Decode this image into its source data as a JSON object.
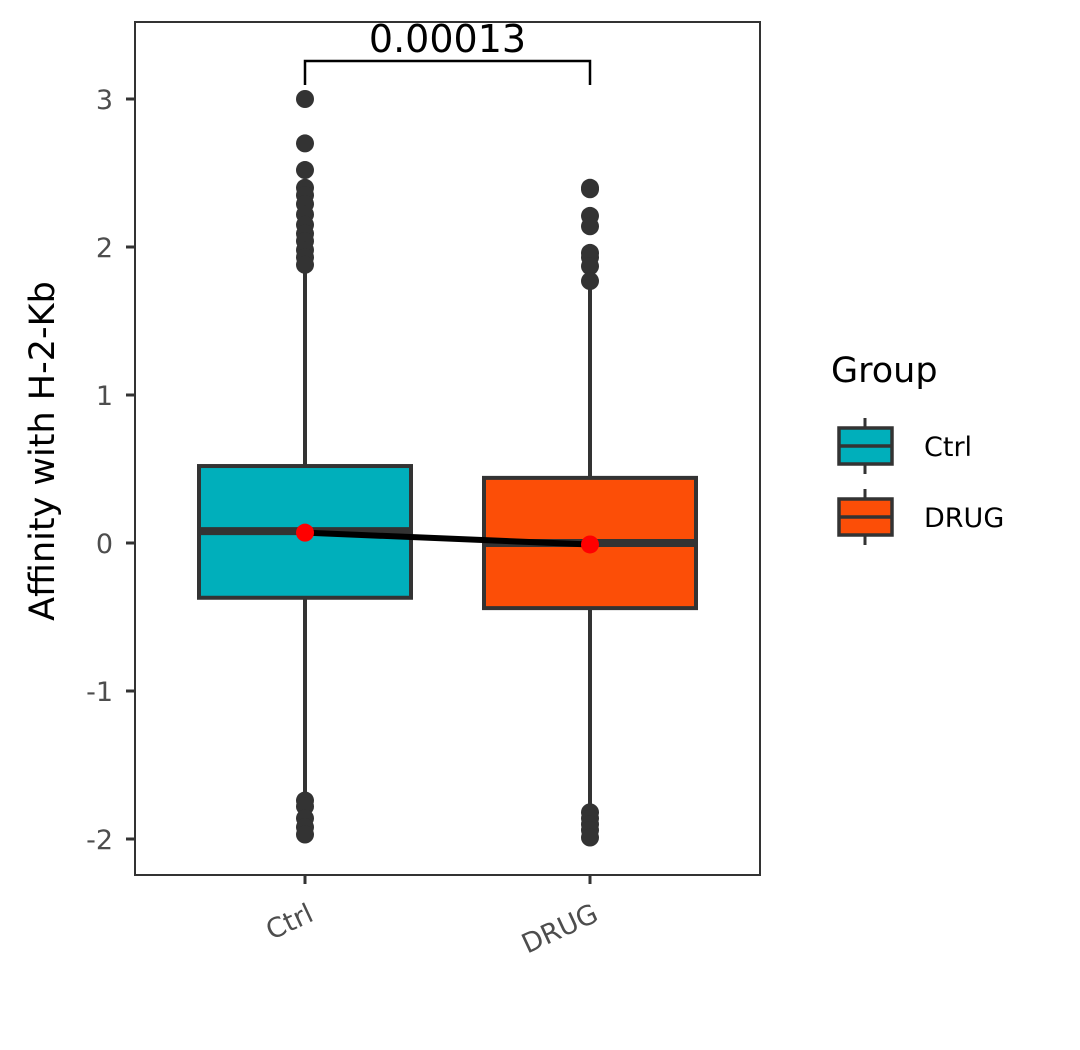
{
  "chart_data": {
    "type": "box",
    "ylabel": "Affinity with H-2-Kb",
    "xlabel": "",
    "ylim": [
      -2.25,
      3.5
    ],
    "yticks": [
      -2,
      -1,
      0,
      1,
      2,
      3
    ],
    "ytick_labels": [
      "-2",
      "-1",
      "0",
      "1",
      "2",
      "3"
    ],
    "categories": [
      "Ctrl",
      "DRUG"
    ],
    "grid": false,
    "groups": [
      {
        "name": "Ctrl",
        "color": "#00AFBB",
        "q1": -0.37,
        "median": 0.08,
        "q3": 0.52,
        "whisker_low": -1.72,
        "whisker_high": 1.87,
        "mean": 0.07,
        "outliers": [
          3.0,
          2.7,
          2.52,
          2.4,
          2.35,
          2.29,
          2.22,
          2.15,
          2.09,
          2.04,
          1.98,
          1.93,
          1.88,
          -1.74,
          -1.78,
          -1.86,
          -1.92,
          -1.97
        ]
      },
      {
        "name": "DRUG",
        "color": "#FC4E07",
        "q1": -0.44,
        "median": 0.0,
        "q3": 0.44,
        "whisker_low": -1.8,
        "whisker_high": 1.75,
        "mean": -0.01,
        "outliers": [
          2.4,
          2.39,
          2.21,
          2.14,
          1.96,
          1.93,
          1.87,
          1.77,
          -1.82,
          -1.86,
          -1.9,
          -1.94,
          -1.99
        ]
      }
    ],
    "mean_line": {
      "color": "#000000",
      "point_color": "#FF0000"
    },
    "comparison": {
      "label": "0.00013",
      "groups": [
        "Ctrl",
        "DRUG"
      ]
    },
    "legend": {
      "title": "Group",
      "position": "right",
      "entries": [
        "Ctrl",
        "DRUG"
      ]
    }
  }
}
